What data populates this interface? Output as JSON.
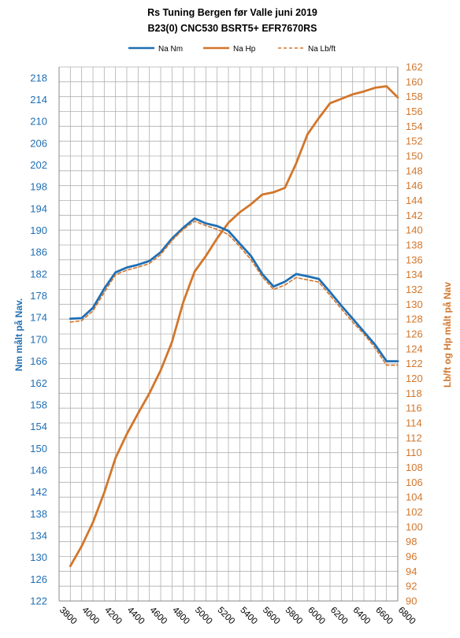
{
  "chart_data": {
    "type": "line",
    "title": "Rs Tuning Bergen før Valle juni 2019",
    "subtitle": "B23(0) CNC530 BSRT5+ EFR7670RS",
    "x_ticks": [
      3800,
      4000,
      4200,
      4400,
      4600,
      4800,
      5000,
      5200,
      5400,
      5600,
      5800,
      6000,
      6200,
      6400,
      6600,
      6800
    ],
    "xlim": [
      3800,
      6800
    ],
    "ylabel_left": "Nm målt på Nav.",
    "ylabel_right": "Lb/ft og Hp målt på Nav",
    "ylim_left": [
      122,
      220
    ],
    "ylim_right": [
      90,
      162
    ],
    "left_ticks": [
      122,
      126,
      130,
      134,
      138,
      142,
      146,
      150,
      154,
      158,
      162,
      166,
      170,
      174,
      178,
      182,
      186,
      190,
      194,
      198,
      202,
      206,
      210,
      214,
      218
    ],
    "right_ticks": [
      90,
      92,
      94,
      96,
      98,
      100,
      102,
      104,
      106,
      108,
      110,
      112,
      114,
      116,
      118,
      120,
      122,
      124,
      126,
      128,
      130,
      132,
      134,
      136,
      138,
      140,
      142,
      144,
      146,
      148,
      150,
      152,
      154,
      156,
      158,
      160,
      162
    ],
    "legend_position": "top",
    "grid": true,
    "colors": {
      "nm": "#1f6fb4",
      "hp": "#d2762b",
      "lbft": "#d2762b",
      "grid": "#b0b0b0",
      "axis": "#888888"
    },
    "series": [
      {
        "name": "Na Nm",
        "axis": "left",
        "x": [
          3900,
          4000,
          4100,
          4200,
          4300,
          4400,
          4500,
          4600,
          4700,
          4800,
          4900,
          5000,
          5100,
          5200,
          5300,
          5400,
          5500,
          5600,
          5700,
          5800,
          5900,
          6000,
          6100,
          6200,
          6300,
          6400,
          6500,
          6600,
          6700,
          6800
        ],
        "values": [
          173.8,
          173.9,
          175.8,
          179.3,
          182.3,
          183.2,
          183.7,
          184.4,
          186.0,
          188.5,
          190.5,
          192.2,
          191.3,
          190.8,
          189.9,
          187.6,
          185.3,
          182.0,
          179.7,
          180.6,
          182.0,
          181.6,
          181.1,
          178.7,
          176.2,
          173.8,
          171.4,
          169.0,
          166.0,
          166.0
        ]
      },
      {
        "name": "Na Hp",
        "axis": "right",
        "x": [
          3900,
          4000,
          4100,
          4200,
          4300,
          4400,
          4500,
          4600,
          4700,
          4800,
          4900,
          5000,
          5100,
          5200,
          5300,
          5400,
          5500,
          5600,
          5700,
          5800,
          5900,
          6000,
          6100,
          6200,
          6300,
          6400,
          6500,
          6600,
          6700,
          6800
        ],
        "values": [
          94.7,
          97.4,
          100.6,
          104.6,
          109.3,
          112.5,
          115.3,
          118.0,
          121.1,
          124.9,
          130.3,
          134.4,
          136.5,
          138.9,
          141.0,
          142.4,
          143.5,
          144.8,
          145.1,
          145.7,
          149.0,
          152.9,
          155.1,
          157.1,
          157.7,
          158.3,
          158.7,
          159.2,
          159.4,
          157.9
        ]
      },
      {
        "name": "Na Lb/ft",
        "axis": "right",
        "dashed": true,
        "x": [
          3900,
          4000,
          4100,
          4200,
          4300,
          4400,
          4500,
          4600,
          4700,
          4800,
          4900,
          5000,
          5100,
          5200,
          5300,
          5400,
          5500,
          5600,
          5700,
          5800,
          5900,
          6000,
          6100,
          6200,
          6300,
          6400,
          6500,
          6600,
          6700,
          6800
        ],
        "values": [
          127.6,
          127.8,
          129.1,
          131.6,
          134.0,
          134.6,
          135.0,
          135.5,
          136.7,
          138.6,
          140.1,
          141.2,
          140.6,
          140.1,
          139.4,
          137.8,
          136.0,
          133.7,
          132.0,
          132.6,
          133.6,
          133.3,
          133.0,
          131.2,
          129.4,
          127.6,
          126.0,
          124.1,
          121.8,
          121.8
        ]
      }
    ]
  }
}
